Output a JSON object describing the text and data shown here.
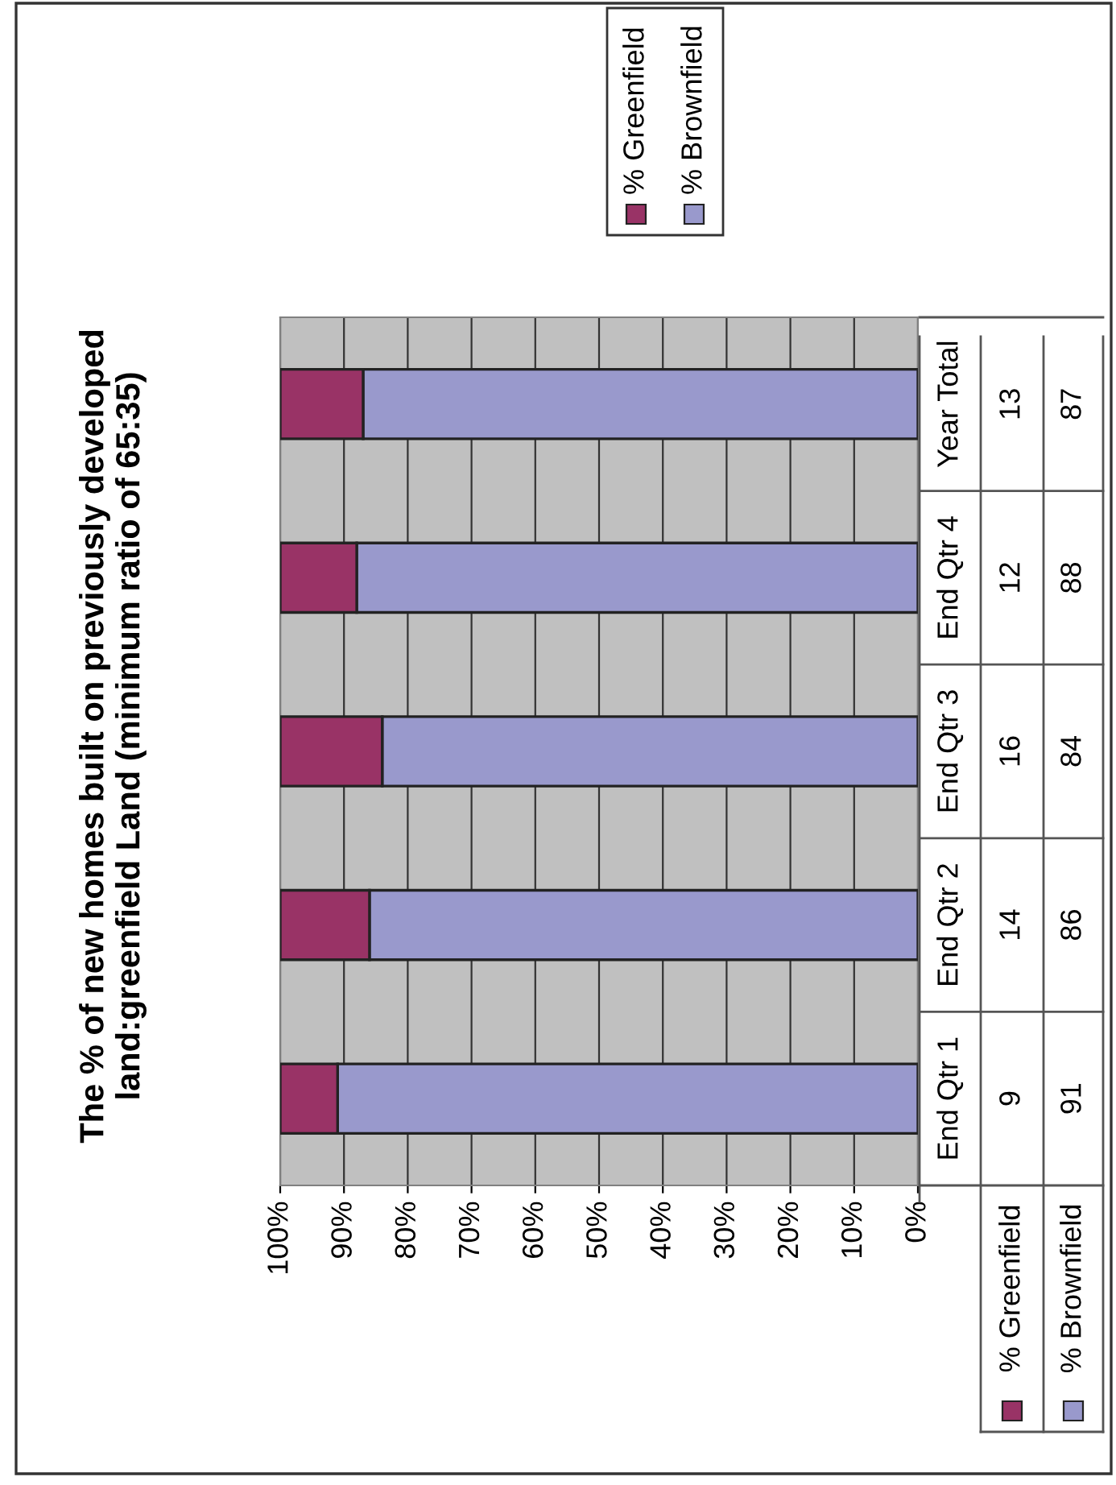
{
  "chart_data": {
    "type": "bar",
    "orientation": "horizontal",
    "stacked": true,
    "title": "The % of new homes built on previously developed\nland:greenfield Land (minimum ratio of 65:35)",
    "categories": [
      "Year Total",
      "End Qtr 4",
      "End Qtr 3",
      "End Qtr 2",
      "End Qtr 1"
    ],
    "series": [
      {
        "name": "% Brownfield",
        "color": "#9999cc",
        "values": [
          87,
          88,
          84,
          86,
          91
        ]
      },
      {
        "name": "% Greenfield",
        "color": "#993366",
        "values": [
          13,
          12,
          16,
          14,
          9
        ]
      }
    ],
    "xlim": [
      100,
      0
    ],
    "xticks": [
      {
        "value": 0,
        "label": "0%"
      },
      {
        "value": 10,
        "label": "10%"
      },
      {
        "value": 20,
        "label": "20%"
      },
      {
        "value": 30,
        "label": "30%"
      },
      {
        "value": 40,
        "label": "40%"
      },
      {
        "value": 50,
        "label": "50%"
      },
      {
        "value": 60,
        "label": "60%"
      },
      {
        "value": 70,
        "label": "70%"
      },
      {
        "value": 80,
        "label": "80%"
      },
      {
        "value": 90,
        "label": "90%"
      },
      {
        "value": 100,
        "label": "100%"
      }
    ],
    "grid": "x",
    "legend": "top right",
    "data_labels": true
  }
}
